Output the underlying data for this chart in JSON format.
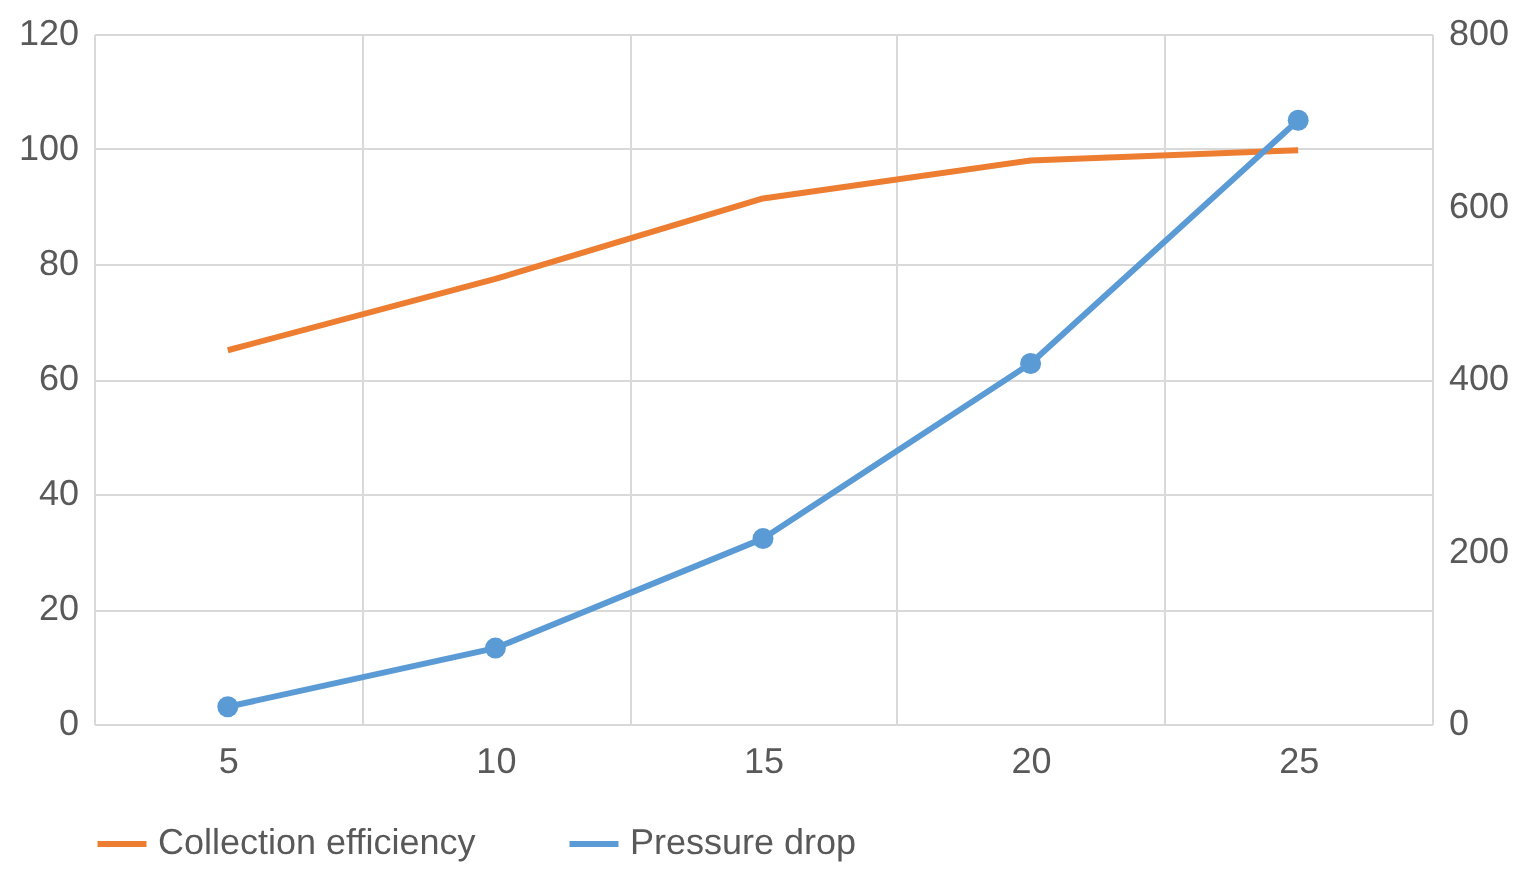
{
  "chart_data": {
    "type": "line",
    "categories": [
      "5",
      "10",
      "15",
      "20",
      "25"
    ],
    "series": [
      {
        "name": "Collection efficiency",
        "color": "#ed7d31",
        "values": [
          65,
          77.4,
          91.4,
          98,
          99.8
        ],
        "marker": "none"
      },
      {
        "name": "Pressure drop",
        "color": "#5b9bd5",
        "values": [
          20,
          88,
          215,
          418,
          700
        ],
        "marker": "circle",
        "axis": "y2"
      }
    ],
    "ylim": [
      0,
      120
    ],
    "yticks": [
      0,
      20,
      40,
      60,
      80,
      100,
      120
    ],
    "y2lim": [
      0,
      800
    ],
    "y2ticks": [
      0,
      200,
      400,
      600,
      800
    ],
    "grid": true,
    "legend": "bottom",
    "line_style": "solid"
  }
}
